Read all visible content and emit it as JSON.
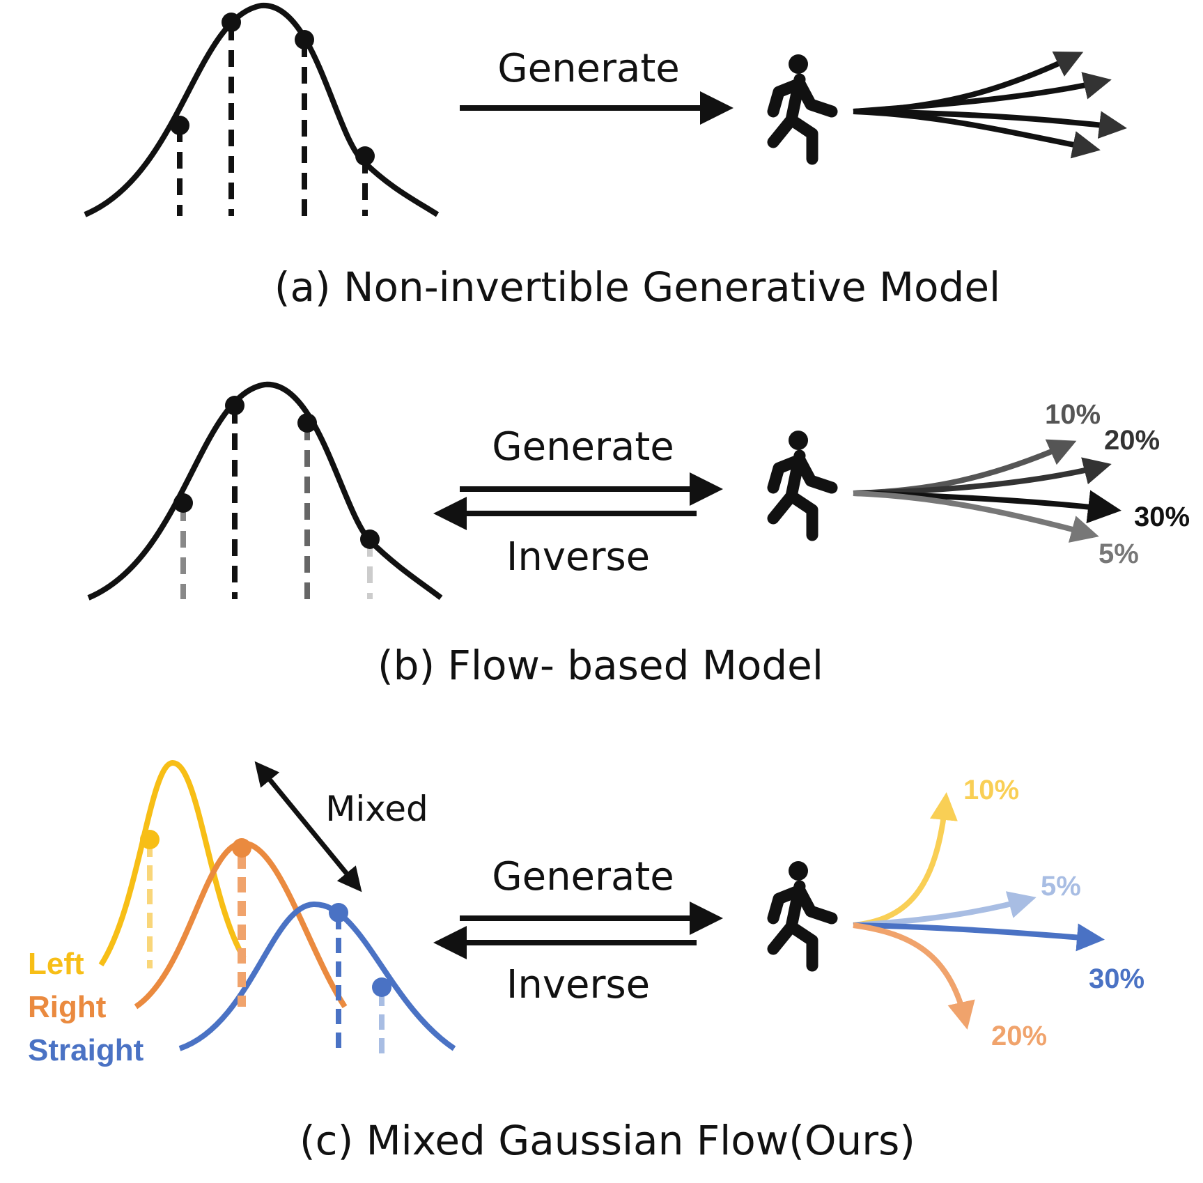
{
  "colors": {
    "ink": "#111111",
    "left": "#f7be16",
    "right": "#ea8a3f",
    "straight": "#4a72c4",
    "left_light": "#f9d679",
    "right_light": "#f0a36c",
    "straight_light": "#a8bde3",
    "gray_dark": "#555555",
    "gray_mid": "#777777",
    "gray_light": "#c9c9c9"
  },
  "panel_a": {
    "caption": "(a) Non-invertible Generative Model",
    "generate_label": "Generate",
    "icons": {
      "person": "walking-person-icon",
      "distribution": "gaussian-curve-icon"
    }
  },
  "panel_b": {
    "caption": "(b) Flow- based Model",
    "generate_label": "Generate",
    "inverse_label": "Inverse",
    "outputs": [
      {
        "label": "10%",
        "color": "#555555"
      },
      {
        "label": "20%",
        "color": "#333333"
      },
      {
        "label": "30%",
        "color": "#111111"
      },
      {
        "label": "5%",
        "color": "#777777"
      }
    ]
  },
  "panel_c": {
    "caption": "(c) Mixed Gaussian Flow(Ours)",
    "mixed_label": "Mixed",
    "generate_label": "Generate",
    "inverse_label": "Inverse",
    "legend": [
      {
        "label": "Left",
        "color": "#f7be16"
      },
      {
        "label": "Right",
        "color": "#ea8a3f"
      },
      {
        "label": "Straight",
        "color": "#4a72c4"
      }
    ],
    "outputs": [
      {
        "label": "10%",
        "color": "#f9cf55"
      },
      {
        "label": "5%",
        "color": "#a8bde3"
      },
      {
        "label": "30%",
        "color": "#4a72c4"
      },
      {
        "label": "20%",
        "color": "#f0a36c"
      }
    ]
  }
}
